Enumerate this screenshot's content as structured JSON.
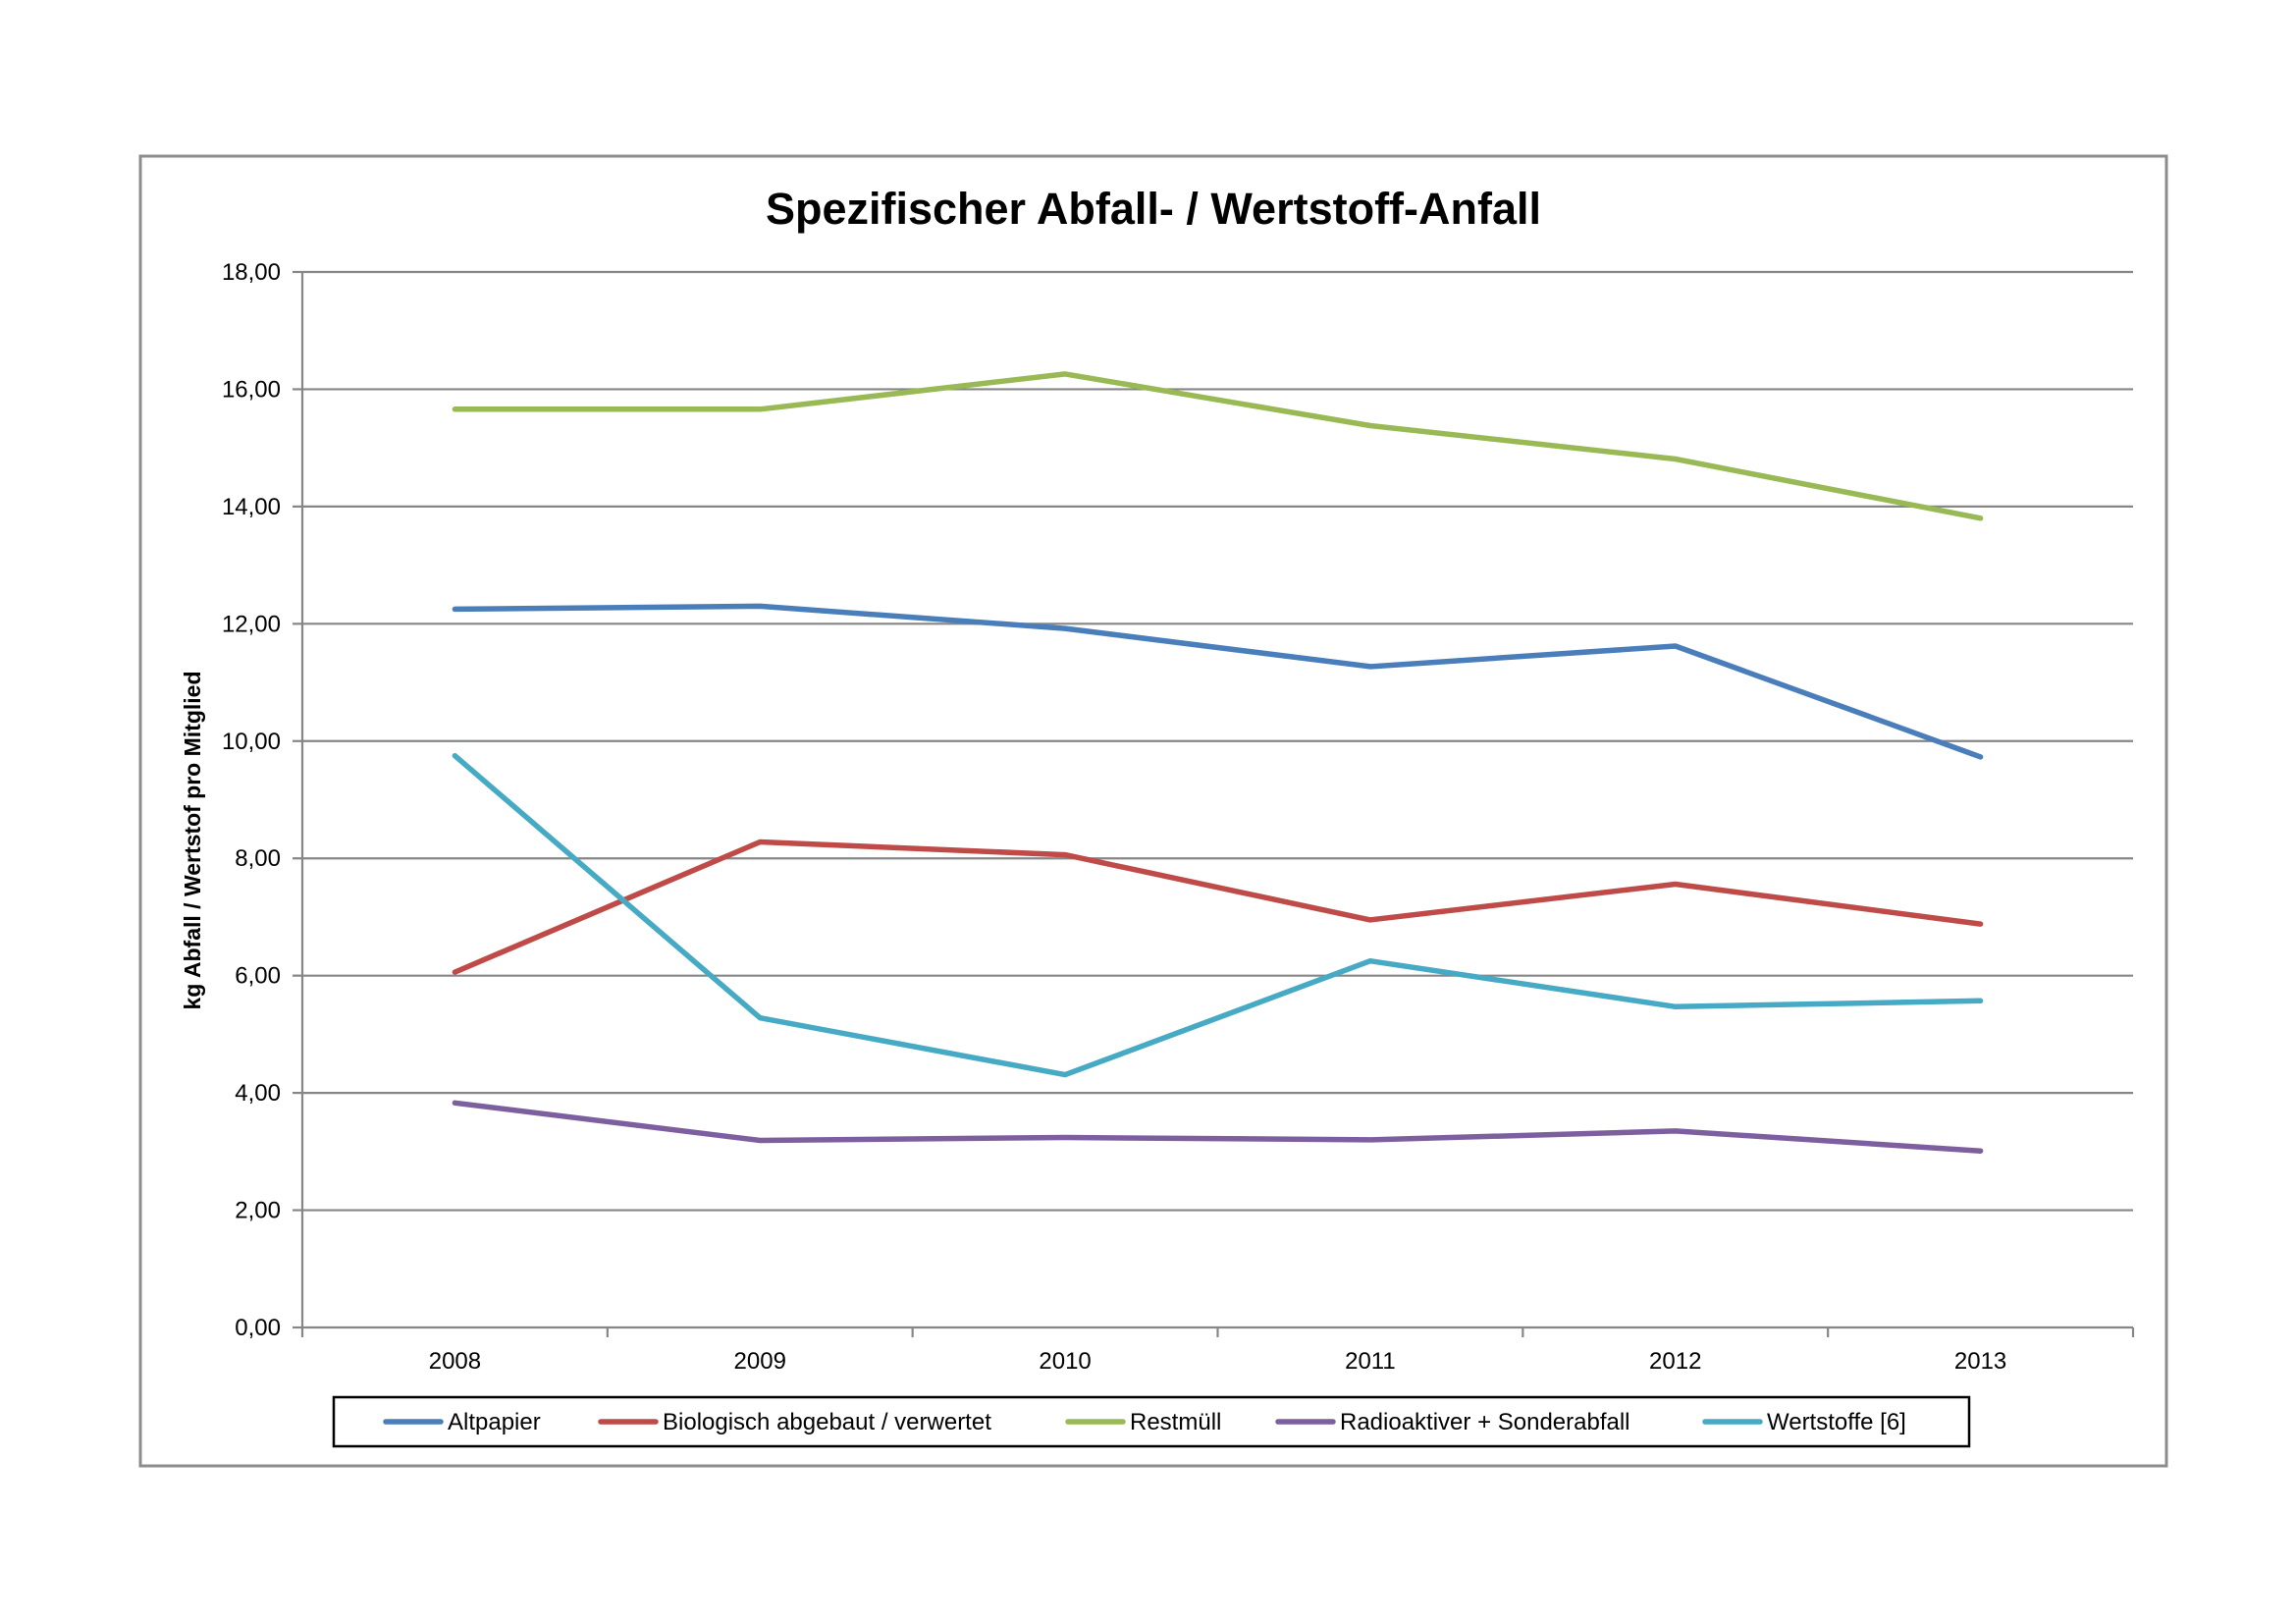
{
  "chart_data": {
    "type": "line",
    "title": "Spezifischer Abfall- / Wertstoff-Anfall",
    "xlabel": "",
    "ylabel": "kg Abfall / Wertstof pro Mitglied",
    "categories": [
      "2008",
      "2009",
      "2010",
      "2011",
      "2012",
      "2013"
    ],
    "ylim": [
      0,
      18
    ],
    "y_ticks": [
      "0,00",
      "2,00",
      "4,00",
      "6,00",
      "8,00",
      "10,00",
      "12,00",
      "14,00",
      "16,00",
      "18,00"
    ],
    "grid": true,
    "legend_position": "bottom",
    "series": [
      {
        "name": "Altpapier",
        "color": "#4a7ebb",
        "values": [
          12.25,
          12.3,
          11.92,
          11.27,
          11.62,
          9.73
        ]
      },
      {
        "name": "Biologisch abgebaut / verwertet",
        "color": "#be4b48",
        "values": [
          6.06,
          8.28,
          8.06,
          6.95,
          7.56,
          6.88
        ]
      },
      {
        "name": "Restmüll",
        "color": "#98b954",
        "values": [
          15.66,
          15.66,
          16.26,
          15.38,
          14.81,
          13.8
        ]
      },
      {
        "name": "Radioaktiver + Sonderabfall",
        "color": "#7d5fa0",
        "values": [
          3.83,
          3.19,
          3.24,
          3.2,
          3.35,
          3.01
        ]
      },
      {
        "name": "Wertstoffe [6]",
        "color": "#46aac5",
        "values": [
          9.75,
          5.28,
          4.31,
          6.25,
          5.47,
          5.57
        ]
      }
    ]
  }
}
